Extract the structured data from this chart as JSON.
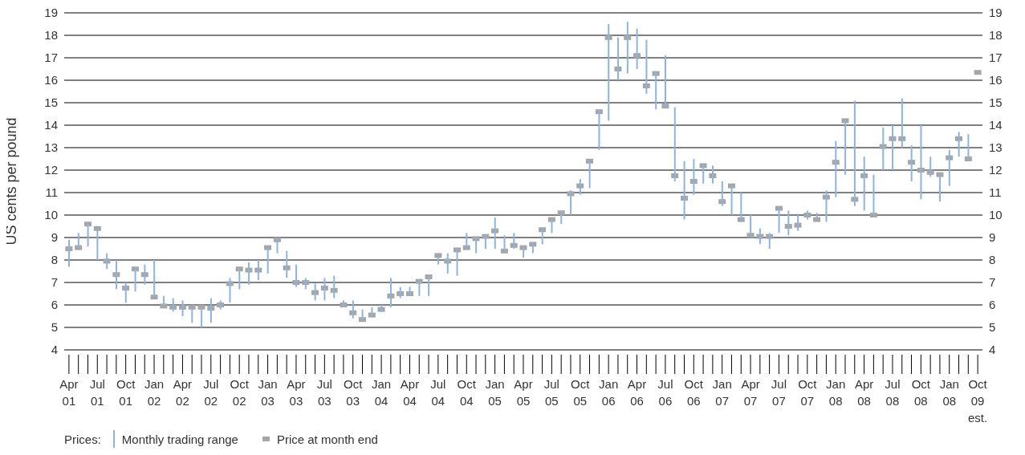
{
  "chart_data": {
    "type": "bar",
    "ylabel": "US cents per pound",
    "legend_title": "Prices:",
    "legend": "bottom left",
    "grid": "y",
    "categories": [
      "Apr 01",
      null,
      null,
      "Jul 01",
      null,
      null,
      "Oct 01",
      null,
      null,
      "Jan 02",
      null,
      null,
      "Apr 02",
      null,
      null,
      "Jul 02",
      null,
      null,
      "Oct 02",
      null,
      null,
      "Jan 03",
      null,
      null,
      "Apr 03",
      null,
      null,
      "Jul 03",
      null,
      null,
      "Oct 03",
      null,
      null,
      "Jan 04",
      null,
      null,
      "Apr 04",
      null,
      null,
      "Jul 04",
      null,
      null,
      "Oct 04",
      null,
      null,
      "Jan 05",
      null,
      null,
      "Apr 05",
      null,
      null,
      "Jul 05",
      null,
      null,
      "Oct 05",
      null,
      null,
      "Jan 06",
      null,
      null,
      "Apr 06",
      null,
      null,
      "Jul 06",
      null,
      null,
      "Oct 06",
      null,
      null,
      "Jan 07",
      null,
      null,
      "Apr 07",
      null,
      null,
      "Jul 07",
      null,
      null,
      "Oct 07",
      null,
      null,
      "Jan 08",
      null,
      null,
      "Apr 08",
      null,
      null,
      "Jul 08",
      null,
      null,
      "Oct 08",
      null,
      null,
      "Jan 08",
      null,
      null,
      "Oct 09 est."
    ],
    "series": [
      {
        "name": "Monthly trading range",
        "color": "#8db3e2",
        "base": [
          7.7,
          8.5,
          8.6,
          8.0,
          7.6,
          6.7,
          6.1,
          6.6,
          6.9,
          6.35,
          5.95,
          5.7,
          5.5,
          5.2,
          5.0,
          5.2,
          5.8,
          6.1,
          6.7,
          6.9,
          7.1,
          7.4,
          8.3,
          7.2,
          6.8,
          6.7,
          6.2,
          6.2,
          6.3,
          5.9,
          5.4,
          5.3,
          5.5,
          5.7,
          5.9,
          6.3,
          6.4,
          6.4,
          6.4,
          7.8,
          7.4,
          7.3,
          8.5,
          8.3,
          8.5,
          8.5,
          8.4,
          8.5,
          8.1,
          8.3,
          8.7,
          9.2,
          9.6,
          10.0,
          10.9,
          11.2,
          12.9,
          14.2,
          16.0,
          16.3,
          16.5,
          15.4,
          14.7,
          14.8,
          11.5,
          9.8,
          10.9,
          11.4,
          11.4,
          10.4,
          10.0,
          9.7,
          9.1,
          8.7,
          8.5,
          9.2,
          9.1,
          9.3,
          9.8,
          9.8,
          9.7,
          10.8,
          11.8,
          10.4,
          10.2,
          10.0,
          12.0,
          12.0,
          13.0,
          11.5,
          10.7,
          11.7,
          10.6,
          11.3,
          12.6,
          12.4,
          null
        ],
        "values": [
          1.2,
          0.7,
          1.0,
          1.4,
          0.7,
          1.3,
          0.9,
          1.1,
          0.9,
          1.65,
          0.45,
          0.6,
          0.7,
          0.7,
          0.9,
          1.1,
          0.4,
          1.1,
          0.9,
          1.0,
          0.9,
          1.2,
          0.7,
          1.2,
          1.0,
          0.5,
          0.75,
          1.0,
          1.0,
          0.3,
          0.8,
          0.5,
          0.4,
          0.3,
          1.3,
          0.5,
          0.4,
          0.7,
          0.9,
          0.4,
          0.9,
          1.2,
          0.7,
          0.7,
          0.6,
          1.4,
          0.7,
          0.7,
          0.5,
          0.5,
          0.7,
          0.6,
          0.6,
          1.1,
          0.7,
          1.2,
          1.8,
          4.3,
          1.9,
          2.3,
          1.8,
          2.4,
          1.7,
          2.3,
          3.3,
          2.6,
          1.6,
          0.9,
          0.8,
          1.1,
          1.3,
          1.3,
          0.9,
          0.7,
          0.7,
          1.1,
          1.1,
          0.7,
          0.4,
          0.3,
          1.4,
          2.5,
          2.4,
          4.7,
          2.4,
          1.8,
          1.9,
          2.0,
          2.2,
          1.6,
          3.3,
          0.9,
          1.2,
          1.6,
          1.1,
          1.2,
          null
        ]
      },
      {
        "type": "scatter",
        "name": "Price at month end",
        "color": "#a6a6a6",
        "marker": "square",
        "values": [
          8.5,
          8.55,
          9.6,
          9.4,
          7.95,
          7.35,
          6.75,
          7.6,
          7.35,
          6.35,
          5.95,
          5.9,
          5.9,
          5.9,
          5.9,
          5.85,
          6.0,
          6.95,
          7.6,
          7.55,
          7.55,
          8.55,
          8.9,
          7.65,
          7.0,
          7.0,
          6.55,
          6.75,
          6.65,
          6.0,
          5.65,
          5.35,
          5.55,
          5.8,
          6.4,
          6.5,
          6.5,
          7.05,
          7.25,
          8.2,
          7.95,
          8.45,
          8.55,
          8.95,
          9.05,
          9.3,
          8.4,
          8.65,
          8.55,
          8.7,
          9.35,
          9.8,
          10.1,
          10.95,
          11.3,
          12.4,
          14.6,
          17.9,
          16.5,
          17.9,
          17.1,
          15.75,
          16.3,
          14.85,
          11.75,
          10.75,
          11.5,
          12.2,
          11.75,
          10.6,
          11.3,
          9.8,
          9.1,
          9.05,
          9.05,
          10.3,
          9.5,
          9.55,
          10.0,
          9.8,
          10.8,
          12.35,
          14.2,
          10.7,
          11.75,
          10.0,
          13.05,
          13.4,
          13.4,
          12.35,
          12.0,
          11.9,
          11.8,
          12.55,
          13.4,
          12.5,
          16.35
        ]
      }
    ],
    "ylim": [
      4,
      19
    ],
    "yticks": [
      4,
      5,
      6,
      7,
      8,
      9,
      10,
      11,
      12,
      13,
      14,
      15,
      16,
      17,
      18,
      19
    ],
    "y2lim": [
      4,
      19
    ],
    "y2ticks": [
      4,
      5,
      6,
      7,
      8,
      9,
      10,
      11,
      12,
      13,
      14,
      15,
      16,
      17,
      18,
      19
    ]
  }
}
